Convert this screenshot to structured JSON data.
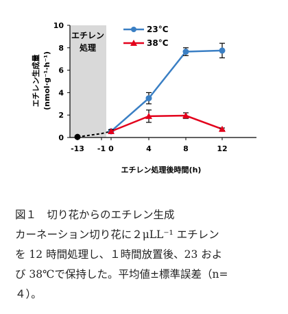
{
  "chart_data": {
    "type": "line",
    "ylabel_line1": "エチレン生成量",
    "ylabel_line2": "(nmol·g⁻¹·h⁻¹)",
    "xlabel": "エチレン処理後時間(h)",
    "treatment_label": [
      "エチレン",
      "処理"
    ],
    "ylim": [
      0,
      10
    ],
    "yticks": [
      0,
      2,
      4,
      6,
      8,
      10
    ],
    "xticks": [
      {
        "x": -13,
        "label": "-13"
      },
      {
        "x": -1,
        "label": "-1"
      },
      {
        "x": 0,
        "label": "0"
      },
      {
        "x": 4,
        "label": "4"
      },
      {
        "x": 8,
        "label": "8"
      },
      {
        "x": 12,
        "label": "12"
      }
    ],
    "series": [
      {
        "name": "23°C",
        "color": "#3a7fc4",
        "marker": "circle",
        "x": [
          0,
          4,
          8,
          12
        ],
        "y": [
          0.55,
          3.5,
          7.65,
          7.75
        ],
        "err": [
          0.15,
          0.5,
          0.35,
          0.65
        ]
      },
      {
        "name": "38°C",
        "color": "#e3001b",
        "marker": "triangle",
        "x": [
          0,
          4,
          8,
          12
        ],
        "y": [
          0.55,
          1.9,
          1.95,
          0.75
        ],
        "err": [
          0.15,
          0.55,
          0.25,
          0.1
        ]
      }
    ],
    "pre_treatment": {
      "x": [
        -13,
        -1,
        0
      ],
      "y": [
        0.05,
        0.35,
        0.55
      ],
      "color": "#000000"
    }
  },
  "caption": {
    "lines": [
      "図１　切り花からのエチレン生成",
      "カーネーション切り花に２μLL⁻¹ エチレン",
      "を 12 時間処理し、１時間放置後、23 およ",
      "び 38℃で保持した。平均値±標準誤差（n=",
      "４）。"
    ]
  }
}
